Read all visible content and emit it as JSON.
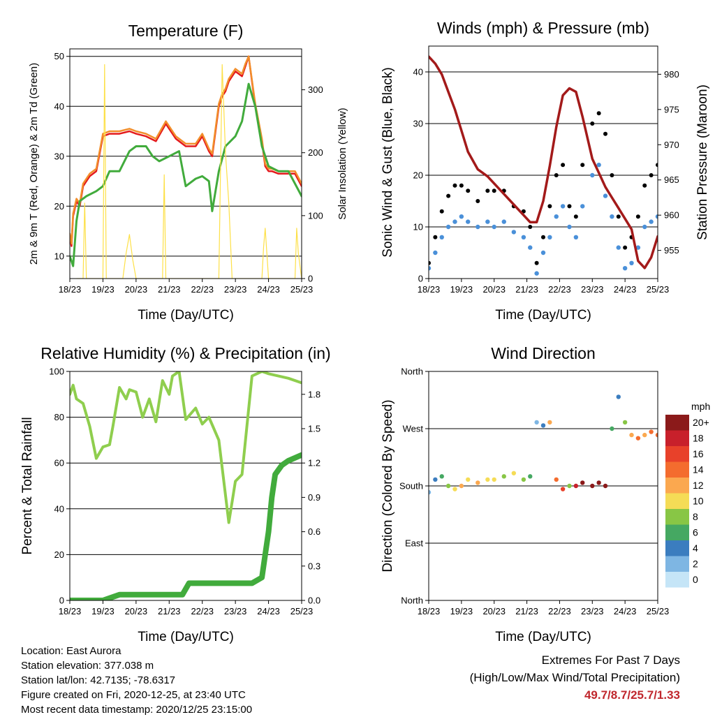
{
  "chart_data": [
    {
      "type": "line",
      "title": "Temperature (F)",
      "xlabel": "Time (Day/UTC)",
      "ylabel": "2m & 9m T (Red, Orange) & 2m Td (Green)",
      "ylabel_right": "Solar Insolation (Yellow)",
      "x_ticks": [
        "18/23",
        "19/23",
        "20/23",
        "21/23",
        "22/23",
        "23/23",
        "24/23",
        "25/23"
      ],
      "y_ticks": [
        10,
        20,
        30,
        40,
        50
      ],
      "y_right_ticks": [
        0,
        100,
        200,
        300
      ],
      "ylim": [
        5.5,
        51.5
      ],
      "ylim_right": [
        0,
        365
      ],
      "grid": true,
      "series": [
        {
          "name": "2m T",
          "color": "#e41a1c",
          "axis": "left",
          "x": [
            0,
            0.05,
            0.1,
            0.2,
            0.3,
            0.4,
            0.6,
            0.8,
            1.0,
            1.2,
            1.5,
            1.8,
            2.0,
            2.3,
            2.6,
            2.9,
            3.2,
            3.5,
            3.8,
            4.0,
            4.2,
            4.3,
            4.5,
            4.6,
            4.7,
            4.8,
            5.0,
            5.2,
            5.3,
            5.4,
            5.6,
            5.8,
            5.9,
            6.0,
            6.1,
            6.3,
            6.5,
            6.8,
            7.0
          ],
          "y": [
            14,
            12,
            18,
            21,
            20,
            24,
            26,
            27,
            34,
            34.5,
            34.5,
            35,
            34.5,
            34,
            33,
            36.5,
            33.5,
            32,
            32,
            34,
            31,
            30,
            40,
            42,
            43,
            45,
            47,
            46,
            48,
            50,
            40,
            33,
            28,
            27,
            27,
            26.5,
            26.5,
            26.5,
            24
          ]
        },
        {
          "name": "9m T",
          "color": "#f28e2b",
          "axis": "left",
          "x": [
            0,
            0.05,
            0.1,
            0.2,
            0.3,
            0.4,
            0.6,
            0.8,
            1.0,
            1.2,
            1.5,
            1.8,
            2.0,
            2.3,
            2.6,
            2.9,
            3.2,
            3.5,
            3.8,
            4.0,
            4.2,
            4.3,
            4.5,
            4.6,
            4.7,
            4.8,
            5.0,
            5.2,
            5.3,
            5.4,
            5.6,
            5.8,
            5.9,
            6.0,
            6.1,
            6.3,
            6.5,
            6.8,
            7.0
          ],
          "y": [
            14.5,
            12.5,
            18.5,
            21.5,
            20.5,
            24.5,
            26.5,
            27.5,
            34.5,
            35,
            35,
            35.5,
            35,
            34.5,
            33.5,
            37,
            34,
            32.5,
            32.5,
            34.5,
            31.5,
            30.5,
            40.5,
            42.5,
            43.5,
            45.5,
            47.5,
            46.5,
            48.5,
            50,
            40.5,
            33.5,
            28.5,
            27.5,
            27.5,
            27,
            27,
            27,
            24.5
          ]
        },
        {
          "name": "2m Td",
          "color": "#41ab3c",
          "axis": "left",
          "x": [
            0,
            0.1,
            0.2,
            0.3,
            0.5,
            0.8,
            1.0,
            1.2,
            1.5,
            1.8,
            2.0,
            2.3,
            2.5,
            2.7,
            3.0,
            3.3,
            3.5,
            3.8,
            4.0,
            4.2,
            4.3,
            4.5,
            4.7,
            5.0,
            5.2,
            5.4,
            5.6,
            5.8,
            6.0,
            6.3,
            6.6,
            7.0
          ],
          "y": [
            10,
            8,
            17,
            21,
            22,
            23,
            24,
            27,
            27,
            31,
            32,
            32,
            30,
            29,
            30,
            31,
            24,
            25.5,
            26,
            25,
            19,
            27,
            32,
            34,
            37,
            44.5,
            40,
            32,
            28,
            27,
            27,
            22
          ]
        },
        {
          "name": "Solar Insolation",
          "color": "#fde047",
          "axis": "right",
          "x": [
            0.2,
            0.4,
            0.45,
            0.5,
            0.6,
            0.8,
            1.0,
            1.05,
            1.1,
            1.2,
            1.4,
            1.6,
            1.7,
            1.8,
            1.9,
            2.0,
            2.2,
            2.5,
            2.8,
            2.85,
            2.9,
            3.0,
            3.2,
            3.5,
            4.0,
            4.5,
            4.6,
            4.7,
            4.8,
            4.9,
            5.0,
            5.2,
            5.5,
            5.8,
            5.85,
            5.9,
            6.0,
            6.2,
            6.5,
            6.8,
            6.85,
            6.9,
            7.0
          ],
          "y": [
            0,
            0,
            120,
            0,
            0,
            0,
            0,
            340,
            0,
            0,
            0,
            0,
            40,
            70,
            30,
            0,
            0,
            0,
            0,
            165,
            0,
            0,
            0,
            0,
            0,
            0,
            340,
            200,
            120,
            0,
            0,
            0,
            0,
            0,
            50,
            80,
            0,
            0,
            0,
            0,
            80,
            40,
            0
          ]
        }
      ]
    },
    {
      "type": "scatter",
      "title": "Winds (mph) & Pressure (mb)",
      "xlabel": "Time (Day/UTC)",
      "ylabel": "Sonic Wind & Gust (Blue, Black)",
      "ylabel_right": "Station Pressure (Maroon)",
      "x_ticks": [
        "18/23",
        "19/23",
        "20/23",
        "21/23",
        "22/23",
        "23/23",
        "24/23",
        "25/23"
      ],
      "y_ticks": [
        0,
        10,
        20,
        30,
        40
      ],
      "y_right_ticks": [
        955,
        960,
        965,
        970,
        975,
        980
      ],
      "ylim": [
        0,
        45
      ],
      "ylim_right": [
        951,
        984
      ],
      "grid": true,
      "series": [
        {
          "name": "Wind",
          "color": "#4a90d9",
          "x": [
            0,
            0.2,
            0.4,
            0.6,
            0.8,
            1.0,
            1.2,
            1.5,
            1.8,
            2.0,
            2.3,
            2.6,
            2.9,
            3.1,
            3.3,
            3.5,
            3.7,
            3.9,
            4.1,
            4.3,
            4.5,
            4.7,
            5.0,
            5.2,
            5.4,
            5.6,
            5.8,
            6.0,
            6.2,
            6.4,
            6.6,
            6.8,
            7.0
          ],
          "y": [
            2,
            5,
            8,
            10,
            11,
            12,
            11,
            10,
            11,
            10,
            11,
            9,
            8,
            6,
            1,
            5,
            8,
            12,
            14,
            10,
            8,
            14,
            20,
            22,
            16,
            12,
            6,
            2,
            3,
            6,
            10,
            11,
            12
          ]
        },
        {
          "name": "Gust",
          "color": "#000000",
          "x": [
            0,
            0.2,
            0.4,
            0.6,
            0.8,
            1.0,
            1.2,
            1.5,
            1.8,
            2.0,
            2.3,
            2.6,
            2.9,
            3.1,
            3.3,
            3.5,
            3.7,
            3.9,
            4.1,
            4.3,
            4.5,
            4.7,
            5.0,
            5.2,
            5.4,
            5.6,
            5.8,
            6.0,
            6.2,
            6.4,
            6.6,
            6.8,
            7.0
          ],
          "y": [
            3,
            8,
            13,
            16,
            18,
            18,
            17,
            15,
            17,
            17,
            17,
            14,
            13,
            10,
            3,
            8,
            14,
            20,
            22,
            14,
            12,
            22,
            30,
            32,
            28,
            20,
            12,
            6,
            8,
            12,
            18,
            20,
            22
          ]
        },
        {
          "name": "Pressure",
          "color": "#a31a1a",
          "axis": "right",
          "x": [
            0,
            0.2,
            0.4,
            0.6,
            0.8,
            1.0,
            1.2,
            1.5,
            1.8,
            2.0,
            2.3,
            2.6,
            2.9,
            3.1,
            3.3,
            3.5,
            3.7,
            3.9,
            4.1,
            4.3,
            4.5,
            4.7,
            5.0,
            5.2,
            5.4,
            5.6,
            5.8,
            6.0,
            6.2,
            6.4,
            6.6,
            6.8,
            7.0
          ],
          "y": [
            982.5,
            981.5,
            980,
            977.5,
            975,
            972,
            969,
            966.5,
            965.5,
            964.5,
            963,
            961.5,
            960,
            959,
            959,
            962,
            967,
            972.5,
            977,
            978,
            977.5,
            974,
            968,
            966,
            964,
            962.5,
            961,
            959.5,
            958,
            953.5,
            952.5,
            954,
            957
          ]
        }
      ]
    },
    {
      "type": "line",
      "title": "Relative Humidity (%) & Precipitation (in)",
      "xlabel": "Time (Day/UTC)",
      "ylabel": "Percent & Total Rainfall",
      "x_ticks": [
        "18/23",
        "19/23",
        "20/23",
        "21/23",
        "22/23",
        "23/23",
        "24/23",
        "25/23"
      ],
      "y_ticks": [
        0,
        20,
        40,
        60,
        80,
        100
      ],
      "y_right_ticks": [
        "0.0",
        "0.3",
        "0.6",
        "0.9",
        "1.2",
        "1.5",
        "1.8"
      ],
      "ylim": [
        0,
        100
      ],
      "ylim_right": [
        0,
        2.0
      ],
      "grid": true,
      "series": [
        {
          "name": "Relative Humidity",
          "color": "#8fce4e",
          "axis": "left",
          "x": [
            0,
            0.1,
            0.2,
            0.4,
            0.6,
            0.8,
            1.0,
            1.2,
            1.3,
            1.5,
            1.7,
            1.8,
            2.0,
            2.2,
            2.4,
            2.6,
            2.8,
            3.0,
            3.1,
            3.3,
            3.5,
            3.8,
            4.0,
            4.2,
            4.5,
            4.8,
            5.0,
            5.2,
            5.5,
            5.8,
            6.0,
            6.3,
            6.6,
            7.0
          ],
          "y": [
            90,
            94,
            88,
            86,
            76,
            62,
            67,
            68,
            76,
            93,
            88,
            92,
            91,
            80,
            88,
            78,
            96,
            90,
            98,
            100,
            79,
            84,
            77,
            80,
            70,
            34,
            52,
            55,
            98,
            100,
            99,
            98,
            97,
            95
          ]
        },
        {
          "name": "Total Rainfall",
          "color": "#41ab3c",
          "axis": "right",
          "x": [
            0,
            0.5,
            1.0,
            1.5,
            2.0,
            2.5,
            3.0,
            3.4,
            3.6,
            4.0,
            4.5,
            5.0,
            5.5,
            5.8,
            5.9,
            6.0,
            6.1,
            6.2,
            6.4,
            6.6,
            7.0
          ],
          "y": [
            0,
            0,
            0,
            0.05,
            0.05,
            0.05,
            0.05,
            0.05,
            0.15,
            0.15,
            0.15,
            0.15,
            0.15,
            0.2,
            0.4,
            0.6,
            0.9,
            1.1,
            1.18,
            1.22,
            1.27
          ]
        }
      ]
    },
    {
      "type": "scatter",
      "title": "Wind Direction",
      "xlabel": "Time (Day/UTC)",
      "ylabel": "Direction (Colored By Speed)",
      "x_ticks": [
        "18/23",
        "19/23",
        "20/23",
        "21/23",
        "22/23",
        "23/23",
        "24/23",
        "25/23"
      ],
      "y_ticks": [
        "North",
        "East",
        "South",
        "West",
        "North"
      ],
      "ylim": [
        0,
        360
      ],
      "grid": true,
      "legend_title": "mph",
      "legend": [
        "20+",
        "18",
        "16",
        "14",
        "12",
        "10",
        "8",
        "6",
        "4",
        "2",
        "0"
      ],
      "legend_colors": [
        "#8b1a1a",
        "#c8202b",
        "#e8412a",
        "#f46c2e",
        "#fba84f",
        "#f5dc56",
        "#88c645",
        "#45a862",
        "#3b7dbf",
        "#7eb6e3",
        "#c5e5f7"
      ],
      "legend_placement": "right",
      "series": [
        {
          "name": "Direction",
          "x": [
            0,
            0.2,
            0.4,
            0.6,
            0.8,
            1.0,
            1.2,
            1.5,
            1.8,
            2.0,
            2.3,
            2.6,
            2.9,
            3.1,
            3.3,
            3.5,
            3.7,
            3.9,
            4.1,
            4.3,
            4.5,
            4.7,
            5.0,
            5.2,
            5.4,
            5.6,
            5.8,
            6.0,
            6.2,
            6.4,
            6.6,
            6.8,
            7.0
          ],
          "y": [
            170,
            190,
            195,
            180,
            175,
            180,
            190,
            185,
            190,
            190,
            195,
            200,
            190,
            195,
            280,
            275,
            280,
            190,
            175,
            180,
            180,
            185,
            180,
            185,
            180,
            270,
            320,
            280,
            260,
            255,
            260,
            265,
            260
          ],
          "speed": [
            2,
            4,
            5,
            8,
            10,
            11,
            10,
            12,
            10,
            9,
            8,
            10,
            8,
            6,
            2,
            4,
            12,
            14,
            16,
            8,
            18,
            19,
            20,
            20,
            20,
            6,
            4,
            8,
            12,
            14,
            12,
            14,
            14
          ]
        }
      ]
    }
  ],
  "info": {
    "location": "Location: East Aurora",
    "elevation": "Station elevation: 377.038 m",
    "latlon": "Station lat/lon: 42.7135; -78.6317",
    "created": "Figure created on Fri, 2020-12-25, at 23:40 UTC",
    "timestamp": "Most recent data timestamp: 2020/12/25 23:15:00"
  },
  "extremes": {
    "title": "Extremes For Past 7 Days",
    "subtitle": "(High/Low/Max Wind/Total Precipitation)",
    "values": "49.7/8.7/25.7/1.33"
  }
}
